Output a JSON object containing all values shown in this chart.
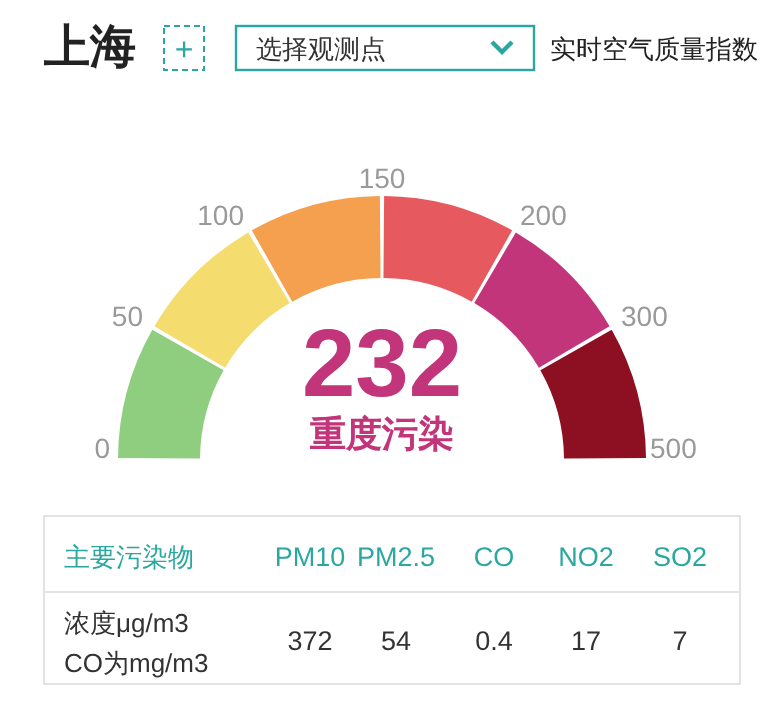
{
  "chart_data": [
    {
      "type": "other",
      "title": "上海",
      "subtitle": "实时空气质量指数",
      "annotations": [
        "+",
        "选择观测点",
        "232",
        "重度污染",
        "0",
        "50",
        "100",
        "150",
        "200",
        "300",
        "500"
      ],
      "colors": [
        "#8fce7f",
        "#f5dc6e",
        "#f5a04e",
        "#e65a5f",
        "#c2357a",
        "#8c1022"
      ]
    },
    {
      "type": "other",
      "xlabel": "主要污染物",
      "categories": [
        "PM10",
        "PM2.5",
        "CO",
        "NO2",
        "SO2"
      ],
      "annotations": [
        "浓度μg/m3",
        "CO为mg/m3"
      ],
      "values": [
        372,
        54,
        0.4,
        17,
        7
      ],
      "data_labels": true
    }
  ]
}
